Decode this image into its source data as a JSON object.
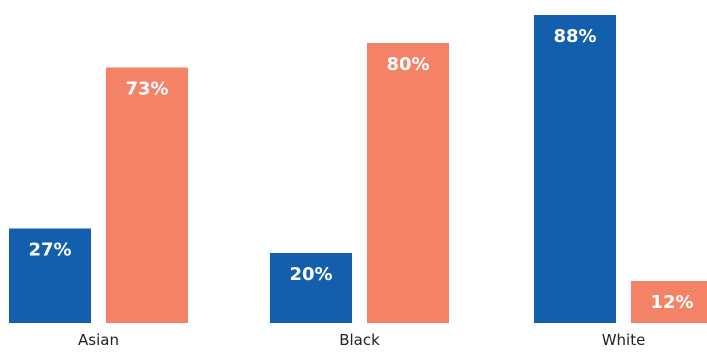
{
  "chart_data": {
    "type": "bar",
    "categories": [
      "Asian",
      "Black",
      "White"
    ],
    "series": [
      {
        "values": [
          27,
          20,
          88
        ],
        "data_labels": [
          "27%",
          "20%",
          "88%"
        ]
      },
      {
        "values": [
          73,
          80,
          12
        ],
        "data_labels": [
          "73%",
          "80%",
          "12%"
        ]
      }
    ],
    "ylim": [
      0,
      100
    ],
    "unit": "%",
    "grid": false,
    "legend": "none",
    "colors": [
      "#135FAD",
      "#F48266"
    ]
  }
}
